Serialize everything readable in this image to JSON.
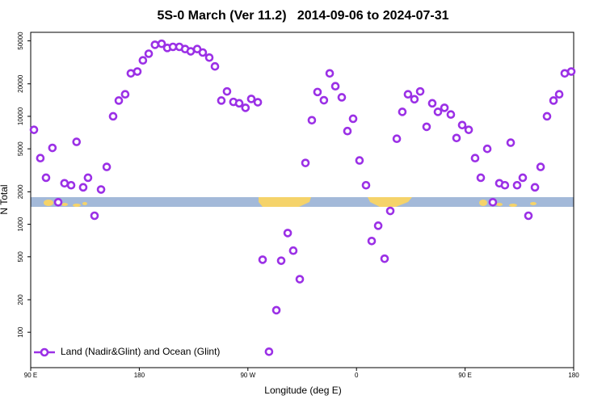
{
  "chart_data": {
    "type": "scatter",
    "title": "5S-0 March (Ver 11.2)   2014-09-06 to 2024-07-31",
    "xlabel": "Longitude (deg E)",
    "ylabel": "N Total",
    "log_y": true,
    "legend_position": "bottom-left",
    "xlim": [
      90,
      540
    ],
    "xticks": [
      {
        "value": 90,
        "label": "90 E"
      },
      {
        "value": 180,
        "label": "180"
      },
      {
        "value": 270,
        "label": "90 W"
      },
      {
        "value": 360,
        "label": "0"
      },
      {
        "value": 450,
        "label": "90 E"
      },
      {
        "value": 540,
        "label": "180"
      }
    ],
    "ylim": [
      47,
      60000
    ],
    "yticks": [
      100,
      200,
      500,
      1000,
      2000,
      5000,
      10000,
      20000,
      50000
    ],
    "series": [
      {
        "name": "Land (Nadir&Glint) and Ocean (Glint)",
        "color": "#9b30e6",
        "x": [
          92.7,
          98,
          102.7,
          108,
          112.8,
          118,
          123.5,
          128,
          133.5,
          137.5,
          142.9,
          148.3,
          153,
          158.3,
          163,
          168.3,
          173,
          178.4,
          183,
          187.8,
          193,
          198.5,
          203.2,
          207.9,
          213.2,
          218,
          222.6,
          228,
          232.6,
          238,
          242.7,
          248,
          252.7,
          258,
          262.8,
          268,
          272.8,
          278.2,
          282.2,
          287.5,
          293.6,
          297.6,
          303,
          307.6,
          313,
          317.7,
          323,
          327.7,
          333,
          337.8,
          342.5,
          347.8,
          352.5,
          357.2,
          362.5,
          367.9,
          372.6,
          378,
          383.3,
          388,
          393.4,
          398,
          402.7,
          408,
          412.8,
          418.1,
          422.8,
          427.5,
          432.9,
          438.2,
          442.9,
          447.6,
          453,
          458.3,
          463,
          468.4,
          473,
          478.4,
          483,
          487.8,
          493.1,
          497.8,
          502.5,
          507.9,
          512.6,
          517.9,
          523.3,
          528,
          532.6,
          538
        ],
        "values": [
          7500,
          4100,
          2700,
          5100,
          1600,
          2400,
          2300,
          5800,
          2200,
          2700,
          1200,
          2100,
          3400,
          10000,
          14000,
          16000,
          25000,
          26000,
          33000,
          38000,
          46000,
          47000,
          43000,
          44000,
          44000,
          42000,
          40000,
          42000,
          39000,
          35000,
          29000,
          14000,
          17000,
          13600,
          13200,
          12000,
          14500,
          13500,
          470,
          66,
          160,
          460,
          830,
          570,
          310,
          3700,
          9200,
          16800,
          14100,
          25000,
          19000,
          15000,
          7300,
          9500,
          3900,
          2300,
          700,
          970,
          480,
          1330,
          6200,
          11000,
          16000,
          14400,
          17000,
          8000,
          13200,
          11000,
          12000,
          10400,
          6300,
          8300,
          7500,
          4100,
          2700,
          5000,
          1600,
          2400,
          2300,
          5700,
          2300,
          2700,
          1200,
          2200,
          3400,
          10000,
          14000,
          16000,
          25000,
          26000
        ]
      }
    ]
  }
}
